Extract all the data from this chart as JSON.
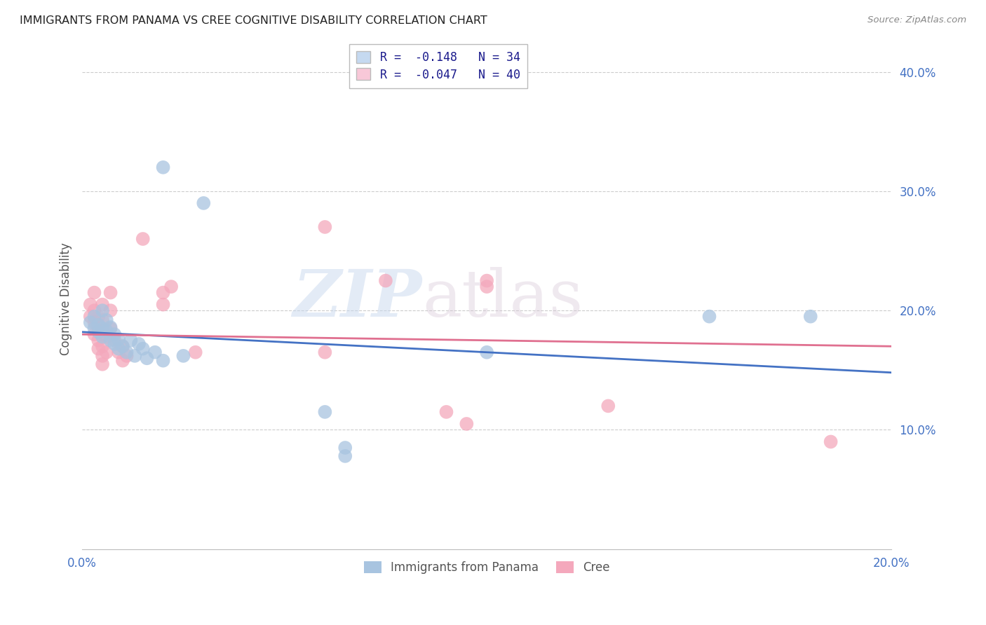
{
  "title": "IMMIGRANTS FROM PANAMA VS CREE COGNITIVE DISABILITY CORRELATION CHART",
  "source": "Source: ZipAtlas.com",
  "ylabel": "Cognitive Disability",
  "xlim": [
    0.0,
    0.2
  ],
  "ylim": [
    0.0,
    0.42
  ],
  "ytick_vals": [
    0.1,
    0.2,
    0.3,
    0.4
  ],
  "ytick_labels": [
    "10.0%",
    "20.0%",
    "30.0%",
    "40.0%"
  ],
  "xtick_vals": [
    0.0,
    0.04,
    0.08,
    0.12,
    0.16,
    0.2
  ],
  "xtick_labels": [
    "0.0%",
    "",
    "",
    "",
    "",
    "20.0%"
  ],
  "legend_blue_label": "R =  -0.148   N = 34",
  "legend_pink_label": "R =  -0.047   N = 40",
  "blue_color": "#a8c4e0",
  "pink_color": "#f4a8bc",
  "blue_line_color": "#4472c4",
  "pink_line_color": "#e07090",
  "blue_scatter": [
    [
      0.002,
      0.19
    ],
    [
      0.003,
      0.185
    ],
    [
      0.003,
      0.195
    ],
    [
      0.004,
      0.188
    ],
    [
      0.004,
      0.182
    ],
    [
      0.005,
      0.2
    ],
    [
      0.005,
      0.185
    ],
    [
      0.005,
      0.178
    ],
    [
      0.006,
      0.192
    ],
    [
      0.006,
      0.183
    ],
    [
      0.007,
      0.186
    ],
    [
      0.007,
      0.175
    ],
    [
      0.008,
      0.18
    ],
    [
      0.008,
      0.172
    ],
    [
      0.009,
      0.168
    ],
    [
      0.009,
      0.176
    ],
    [
      0.01,
      0.17
    ],
    [
      0.011,
      0.165
    ],
    [
      0.012,
      0.175
    ],
    [
      0.013,
      0.162
    ],
    [
      0.014,
      0.172
    ],
    [
      0.015,
      0.168
    ],
    [
      0.016,
      0.16
    ],
    [
      0.018,
      0.165
    ],
    [
      0.02,
      0.158
    ],
    [
      0.025,
      0.162
    ],
    [
      0.02,
      0.32
    ],
    [
      0.03,
      0.29
    ],
    [
      0.06,
      0.115
    ],
    [
      0.065,
      0.085
    ],
    [
      0.065,
      0.078
    ],
    [
      0.1,
      0.165
    ],
    [
      0.155,
      0.195
    ],
    [
      0.18,
      0.195
    ]
  ],
  "pink_scatter": [
    [
      0.002,
      0.205
    ],
    [
      0.002,
      0.195
    ],
    [
      0.003,
      0.215
    ],
    [
      0.003,
      0.2
    ],
    [
      0.003,
      0.19
    ],
    [
      0.003,
      0.18
    ],
    [
      0.004,
      0.195
    ],
    [
      0.004,
      0.185
    ],
    [
      0.004,
      0.175
    ],
    [
      0.004,
      0.168
    ],
    [
      0.005,
      0.205
    ],
    [
      0.005,
      0.192
    ],
    [
      0.005,
      0.18
    ],
    [
      0.005,
      0.17
    ],
    [
      0.005,
      0.162
    ],
    [
      0.005,
      0.155
    ],
    [
      0.006,
      0.178
    ],
    [
      0.006,
      0.165
    ],
    [
      0.007,
      0.215
    ],
    [
      0.007,
      0.2
    ],
    [
      0.007,
      0.185
    ],
    [
      0.008,
      0.175
    ],
    [
      0.009,
      0.165
    ],
    [
      0.01,
      0.17
    ],
    [
      0.01,
      0.158
    ],
    [
      0.011,
      0.162
    ],
    [
      0.015,
      0.26
    ],
    [
      0.02,
      0.215
    ],
    [
      0.02,
      0.205
    ],
    [
      0.022,
      0.22
    ],
    [
      0.028,
      0.165
    ],
    [
      0.06,
      0.27
    ],
    [
      0.06,
      0.165
    ],
    [
      0.075,
      0.225
    ],
    [
      0.09,
      0.115
    ],
    [
      0.095,
      0.105
    ],
    [
      0.1,
      0.225
    ],
    [
      0.1,
      0.22
    ],
    [
      0.13,
      0.12
    ],
    [
      0.185,
      0.09
    ]
  ],
  "blue_line_x": [
    0.0,
    0.2
  ],
  "blue_line_y": [
    0.182,
    0.148
  ],
  "pink_line_x": [
    0.0,
    0.2
  ],
  "pink_line_y": [
    0.18,
    0.17
  ],
  "background_color": "#ffffff",
  "grid_color": "#cccccc",
  "title_color": "#222222",
  "axis_label_color": "#555555",
  "tick_color": "#4472c4",
  "watermark_text": "ZIPatlas",
  "legend_box_blue_fill": "#c5d9f0",
  "legend_box_pink_fill": "#f8c8d8",
  "legend_edge_color": "#bbbbbb",
  "bottom_legend_blue": "Immigrants from Panama",
  "bottom_legend_pink": "Cree"
}
